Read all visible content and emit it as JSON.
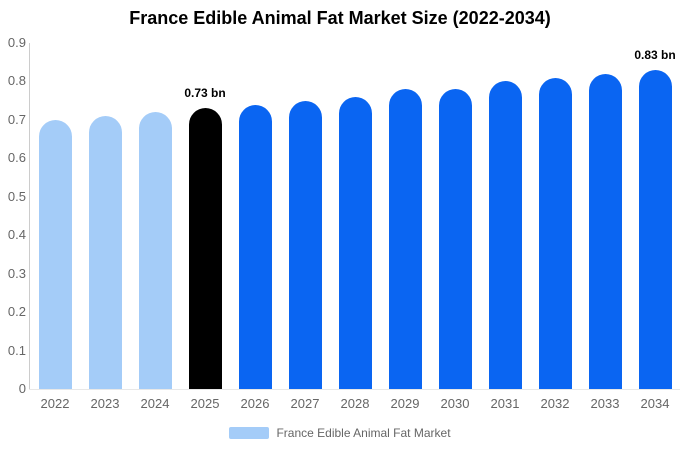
{
  "title": "France Edible Animal Fat Market Size (2022-2034)",
  "legend": {
    "items": [
      {
        "label": "France Edible Animal Fat Market",
        "swatch_color": "#a4ccf8"
      }
    ]
  },
  "colors": {
    "past": "#a4ccf8",
    "current": "#000000",
    "forecast": "#0a65f2",
    "axis_text": "#666666",
    "y_axis_line": "#cccccc",
    "x_axis_line": "#e8e8e8",
    "data_label_text": "#000000"
  },
  "chart_data": {
    "type": "bar",
    "title": "France Edible Animal Fat Market Size (2022-2034)",
    "xlabel": "",
    "ylabel": "",
    "unit": "bn",
    "ylim": [
      0,
      0.9
    ],
    "ytick_labels": [
      "0",
      "0.1",
      "0.2",
      "0.3",
      "0.4",
      "0.5",
      "0.6",
      "0.7",
      "0.8",
      "0.9"
    ],
    "grid": false,
    "legend_position": "bottom",
    "legend_entries": [
      "France Edible Animal Fat Market"
    ],
    "categories": [
      "2022",
      "2023",
      "2024",
      "2025",
      "2026",
      "2027",
      "2028",
      "2029",
      "2030",
      "2031",
      "2032",
      "2033",
      "2034"
    ],
    "values": [
      0.7,
      0.71,
      0.72,
      0.73,
      0.74,
      0.75,
      0.76,
      0.78,
      0.78,
      0.8,
      0.81,
      0.82,
      0.83
    ],
    "bar_roles": [
      "past",
      "past",
      "past",
      "current",
      "forecast",
      "forecast",
      "forecast",
      "forecast",
      "forecast",
      "forecast",
      "forecast",
      "forecast",
      "forecast"
    ],
    "data_labels": [
      {
        "category": "2025",
        "text": "0.73 bn"
      },
      {
        "category": "2034",
        "text": "0.83 bn"
      }
    ]
  }
}
